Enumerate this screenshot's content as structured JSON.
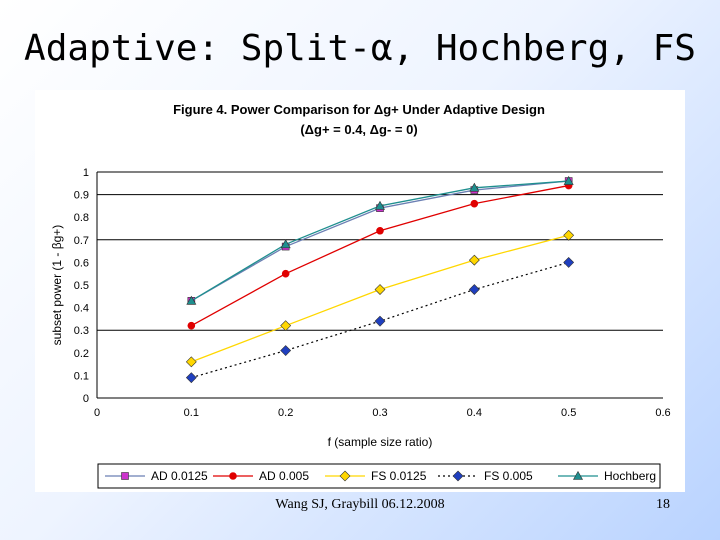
{
  "slide": {
    "title": "Adaptive: Split-α, Hochberg, FS",
    "footer": "Wang SJ, Graybill 06.12.2008",
    "page_number": "18"
  },
  "chart_data": {
    "type": "line",
    "title": "Figure 4. Power Comparison for Δg+ Under Adaptive Design",
    "subtitle": "(Δg+ = 0.4, Δg- = 0)",
    "xlabel": "f (sample size ratio)",
    "ylabel": "subset power (1 - βg+)",
    "xlim": [
      0,
      0.6
    ],
    "ylim": [
      0,
      1
    ],
    "x_ticks": [
      "0",
      "0.1",
      "0.2",
      "0.3",
      "0.4",
      "0.5",
      "0.6"
    ],
    "y_ticks": [
      "0",
      "0.1",
      "0.2",
      "0.3",
      "0.4",
      "0.5",
      "0.6",
      "0.7",
      "0.8",
      "0.9",
      "1"
    ],
    "gridlines_y": [
      0.3,
      0.7,
      0.9,
      1.0
    ],
    "legend_position": "bottom",
    "x": [
      0.1,
      0.2,
      0.3,
      0.4,
      0.5
    ],
    "series": [
      {
        "name": "AD 0.0125",
        "values": [
          0.43,
          0.67,
          0.84,
          0.92,
          0.96
        ],
        "color": "#cc33cc",
        "marker": "square",
        "line": "solid",
        "line_color": "#6b7fb3"
      },
      {
        "name": "AD 0.005",
        "values": [
          0.32,
          0.55,
          0.74,
          0.86,
          0.94
        ],
        "color": "#e00000",
        "marker": "circle",
        "line": "solid",
        "line_color": "#e00000"
      },
      {
        "name": "FS 0.0125",
        "values": [
          0.16,
          0.32,
          0.48,
          0.61,
          0.72
        ],
        "color": "#ffd700",
        "marker": "diamond",
        "line": "solid",
        "line_color": "#ffd700"
      },
      {
        "name": "FS 0.005",
        "values": [
          0.09,
          0.21,
          0.34,
          0.48,
          0.6
        ],
        "color": "#1f3fbf",
        "marker": "diamond",
        "line": "dotted",
        "line_color": "#000000"
      },
      {
        "name": "Hochberg",
        "values": [
          0.43,
          0.68,
          0.85,
          0.93,
          0.96
        ],
        "color": "#1f8f8f",
        "marker": "triangle",
        "line": "solid",
        "line_color": "#1f8f8f"
      }
    ]
  }
}
